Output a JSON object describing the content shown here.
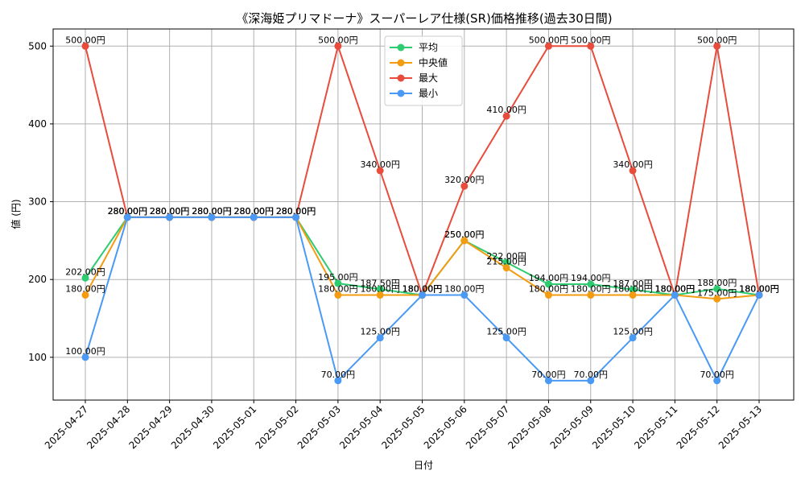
{
  "chart_data": {
    "type": "line",
    "title": "《深海姫プリマドーナ》スーパーレア仕様(SR)価格推移(過去30日間)",
    "xlabel": "日付",
    "ylabel": "値 (円)",
    "value_suffix": "円",
    "categories": [
      "2025-04-27",
      "2025-04-28",
      "2025-04-29",
      "2025-04-30",
      "2025-05-01",
      "2025-05-02",
      "2025-05-03",
      "2025-05-04",
      "2025-05-05",
      "2025-05-06",
      "2025-05-07",
      "2025-05-08",
      "2025-05-09",
      "2025-05-10",
      "2025-05-11",
      "2025-05-12",
      "2025-05-13"
    ],
    "ylim": [
      45,
      522
    ],
    "yticks": [
      100,
      200,
      300,
      400,
      500
    ],
    "grid": true,
    "legend_position": "top-center",
    "series": [
      {
        "name": "平均",
        "color": "#2ecc71",
        "values": [
          202,
          280,
          280,
          280,
          280,
          280,
          195,
          187.5,
          180,
          250,
          222,
          194,
          194,
          187,
          180,
          188,
          180
        ]
      },
      {
        "name": "中央値",
        "color": "#f39c12",
        "values": [
          180,
          280,
          280,
          280,
          280,
          280,
          180,
          180,
          180,
          250,
          215,
          180,
          180,
          180,
          180,
          175,
          180
        ]
      },
      {
        "name": "最大",
        "color": "#e74c3c",
        "values": [
          500,
          280,
          280,
          280,
          280,
          280,
          500,
          340,
          180,
          320,
          410,
          500,
          500,
          340,
          180,
          500,
          180
        ]
      },
      {
        "name": "最小",
        "color": "#4a9af5",
        "values": [
          100,
          280,
          280,
          280,
          280,
          280,
          70,
          125,
          180,
          180,
          125,
          70,
          70,
          125,
          180,
          70,
          180
        ]
      }
    ]
  }
}
